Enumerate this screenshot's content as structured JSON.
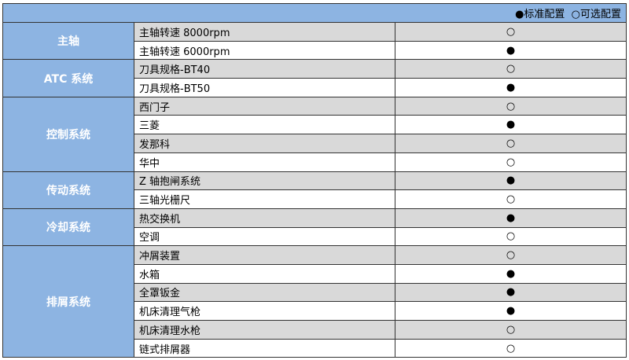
{
  "legend": {
    "standard": "●标准配置",
    "optional": "○可选配置"
  },
  "marks": {
    "standard": "●",
    "optional": "○"
  },
  "colors": {
    "header": "#8db4e2",
    "row_gray": "#d9d9d9"
  },
  "groups": [
    {
      "name": "主轴",
      "items": [
        {
          "label": "主轴转速 8000rpm",
          "type": "optional"
        },
        {
          "label": "主轴转速 6000rpm",
          "type": "standard"
        }
      ]
    },
    {
      "name": "ATC 系统",
      "items": [
        {
          "label": "刀具规格-BT40",
          "type": "optional"
        },
        {
          "label": "刀具规格-BT50",
          "type": "standard"
        }
      ]
    },
    {
      "name": "控制系统",
      "items": [
        {
          "label": "西门子",
          "type": "optional"
        },
        {
          "label": "三菱",
          "type": "standard"
        },
        {
          "label": "发那科",
          "type": "optional"
        },
        {
          "label": "华中",
          "type": "optional"
        }
      ]
    },
    {
      "name": "传动系统",
      "items": [
        {
          "label": "Z 轴抱闸系统",
          "type": "standard"
        },
        {
          "label": "三轴光栅尺",
          "type": "optional"
        }
      ]
    },
    {
      "name": "冷却系统",
      "items": [
        {
          "label": "热交换机",
          "type": "standard"
        },
        {
          "label": "空调",
          "type": "optional"
        }
      ]
    },
    {
      "name": "排屑系统",
      "items": [
        {
          "label": "冲屑装置",
          "type": "optional"
        },
        {
          "label": "水箱",
          "type": "standard"
        },
        {
          "label": "全罩钣金",
          "type": "standard"
        },
        {
          "label": "机床清理气枪",
          "type": "standard"
        },
        {
          "label": "机床清理水枪",
          "type": "optional"
        },
        {
          "label": "链式排屑器",
          "type": "optional"
        }
      ]
    }
  ]
}
